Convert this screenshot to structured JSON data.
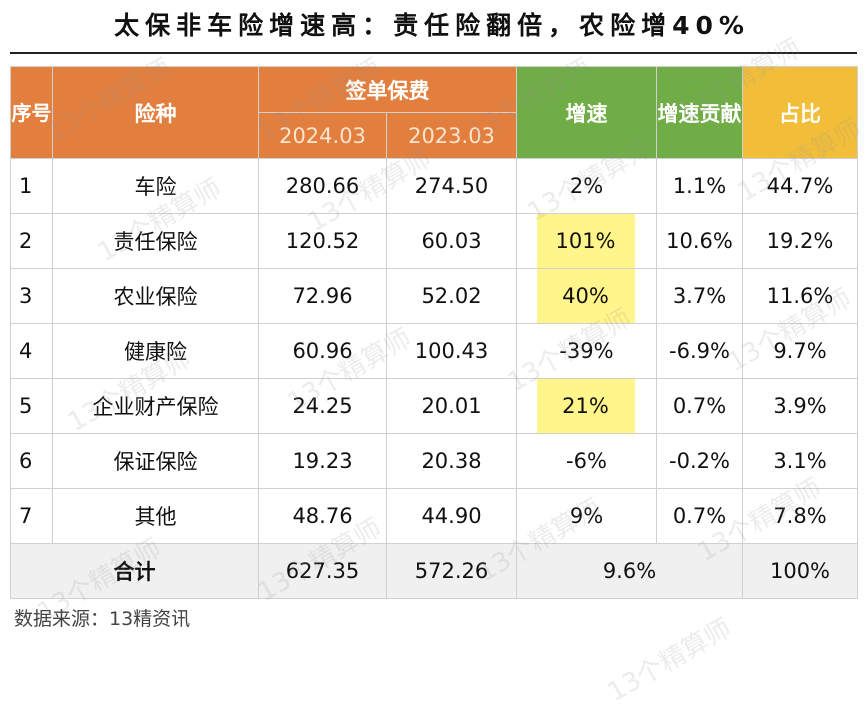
{
  "title": "太保非车险增速高：责任险翻倍，农险增40%",
  "headers": {
    "index": "序号",
    "type": "险种",
    "premium": "签单保费",
    "y2024": "2024.03",
    "y2023": "2023.03",
    "growth": "增速",
    "contribution": "增速贡献",
    "share": "占比"
  },
  "rows": [
    {
      "index": "1",
      "type": "车险",
      "y2024": "280.66",
      "y2023": "274.50",
      "growth": "2%",
      "contribution": "1.1%",
      "share": "44.7%",
      "highlight": false
    },
    {
      "index": "2",
      "type": "责任保险",
      "y2024": "120.52",
      "y2023": "60.03",
      "growth": "101%",
      "contribution": "10.6%",
      "share": "19.2%",
      "highlight": true
    },
    {
      "index": "3",
      "type": "农业保险",
      "y2024": "72.96",
      "y2023": "52.02",
      "growth": "40%",
      "contribution": "3.7%",
      "share": "11.6%",
      "highlight": true
    },
    {
      "index": "4",
      "type": "健康险",
      "y2024": "60.96",
      "y2023": "100.43",
      "growth": "-39%",
      "contribution": "-6.9%",
      "share": "9.7%",
      "highlight": false
    },
    {
      "index": "5",
      "type": "企业财产保险",
      "y2024": "24.25",
      "y2023": "20.01",
      "growth": "21%",
      "contribution": "0.7%",
      "share": "3.9%",
      "highlight": true
    },
    {
      "index": "6",
      "type": "保证保险",
      "y2024": "19.23",
      "y2023": "20.38",
      "growth": "-6%",
      "contribution": "-0.2%",
      "share": "3.1%",
      "highlight": false
    },
    {
      "index": "7",
      "type": "其他",
      "y2024": "48.76",
      "y2023": "44.90",
      "growth": "9%",
      "contribution": "0.7%",
      "share": "7.8%",
      "highlight": false
    }
  ],
  "total": {
    "label": "合计",
    "y2024": "627.35",
    "y2023": "572.26",
    "growth": "9.6%",
    "share": "100%"
  },
  "source": "数据来源：13精资讯",
  "watermark": "13个精算师",
  "colors": {
    "header_orange": "#E27E3E",
    "header_green": "#70AD47",
    "header_yellow": "#F2BE3A",
    "highlight": "#FFF58A"
  }
}
